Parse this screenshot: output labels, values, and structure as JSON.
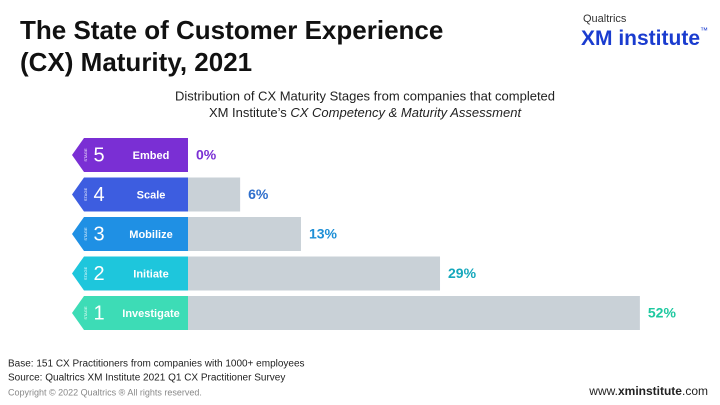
{
  "chart_data": {
    "type": "bar",
    "title": [
      "The State of Customer Experience",
      "(CX) Maturity, 2021"
    ],
    "logo": {
      "brand": "Qualtrics",
      "name": "XM institute",
      "mark": "™"
    },
    "subtitle": {
      "line1": "Distribution of CX Maturity Stages from companies that completed",
      "line2": [
        "XM Institute’s ",
        "CX Competency & Maturity Assessment"
      ]
    },
    "stage_label": "STAGE",
    "stages": [
      "5",
      "4",
      "3",
      "2",
      "1"
    ],
    "categories": [
      "Embed",
      "Scale",
      "Mobilize",
      "Initiate",
      "Investigate"
    ],
    "values": [
      0,
      6,
      13,
      29,
      52
    ],
    "value_labels": [
      "0%",
      "6%",
      "13%",
      "29%",
      "52%"
    ],
    "colors": [
      "#7a2fd4",
      "#3d5de0",
      "#1f90e4",
      "#1ec6dc",
      "#3ddcb6"
    ],
    "label_colors": [
      "#7a2fd4",
      "#2f6fcc",
      "#1d8fd6",
      "#16a8bc",
      "#1ec9a0"
    ],
    "bar_color": "#c9d1d7",
    "footer": {
      "base": "Base: 151 CX Practitioners from companies with 1000+ employees",
      "source": "Source: Qualtrics XM Institute 2021 Q1 CX Practitioner Survey",
      "copyright": "Copyright © 2022 Qualtrics ® All rights reserved.",
      "url": [
        "www.",
        "xminstitute",
        ".com"
      ]
    }
  }
}
